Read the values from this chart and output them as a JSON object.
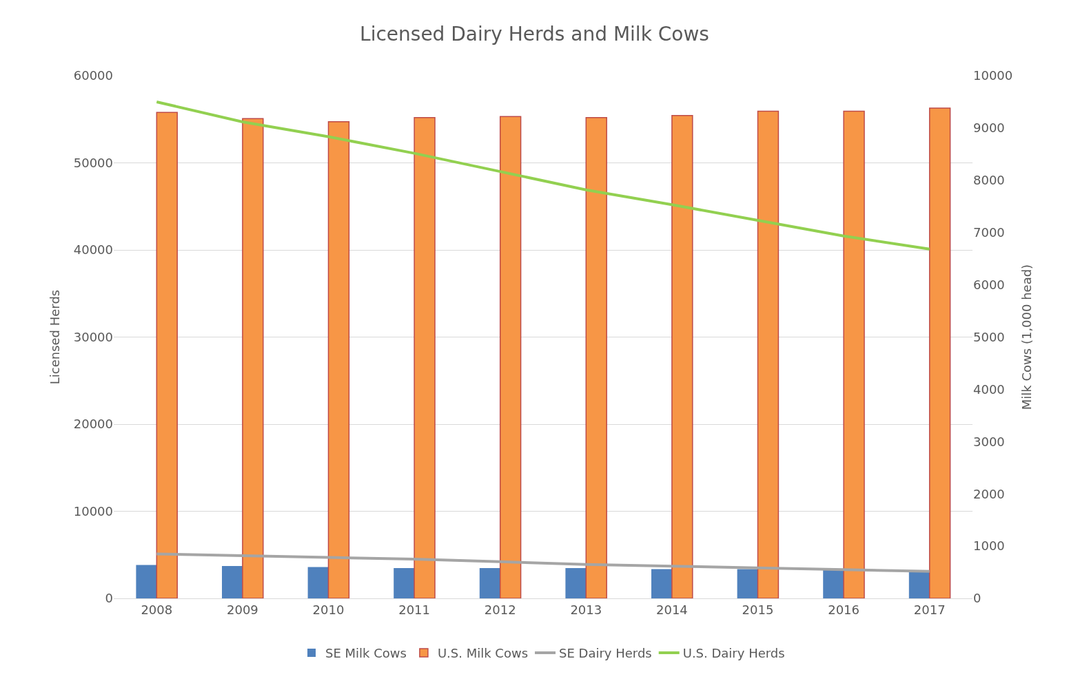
{
  "chart_data": {
    "type": "bar",
    "title": "Licensed Dairy Herds and Milk Cows",
    "ylabel": "Licensed Herds",
    "y2label": "Milk Cows (1,000 head)",
    "categories": [
      "2008",
      "2009",
      "2010",
      "2011",
      "2012",
      "2013",
      "2014",
      "2015",
      "2016",
      "2017"
    ],
    "series": [
      {
        "name": "SE Milk Cows",
        "axis": "y2",
        "color": "#4f81bd",
        "values": [
          640,
          620,
          600,
          580,
          580,
          580,
          560,
          560,
          540,
          520
        ]
      },
      {
        "name": "U.S. Milk Cows",
        "axis": "y2",
        "color": "#f79646",
        "values": [
          9300,
          9180,
          9120,
          9200,
          9220,
          9200,
          9240,
          9320,
          9320,
          9380
        ]
      },
      {
        "name": "SE Dairy Herds",
        "type": "line",
        "color": "#a5a5a5",
        "values": [
          5100,
          4900,
          4700,
          4500,
          4200,
          3900,
          3700,
          3500,
          3300,
          3100
        ]
      },
      {
        "name": "U.S. Dairy Herds",
        "type": "line",
        "color": "#92d050",
        "values": [
          57000,
          54700,
          53000,
          51100,
          49000,
          46900,
          45200,
          43400,
          41600,
          40100
        ]
      }
    ],
    "ylim": [
      0,
      60000
    ],
    "yticks": [
      0,
      10000,
      20000,
      30000,
      40000,
      50000,
      60000
    ],
    "y2lim": [
      0,
      10000
    ],
    "y2ticks": [
      0,
      1000,
      2000,
      3000,
      4000,
      5000,
      6000,
      7000,
      8000,
      9000,
      10000
    ],
    "grid": "y",
    "legend": "bottom",
    "marker": "none"
  }
}
